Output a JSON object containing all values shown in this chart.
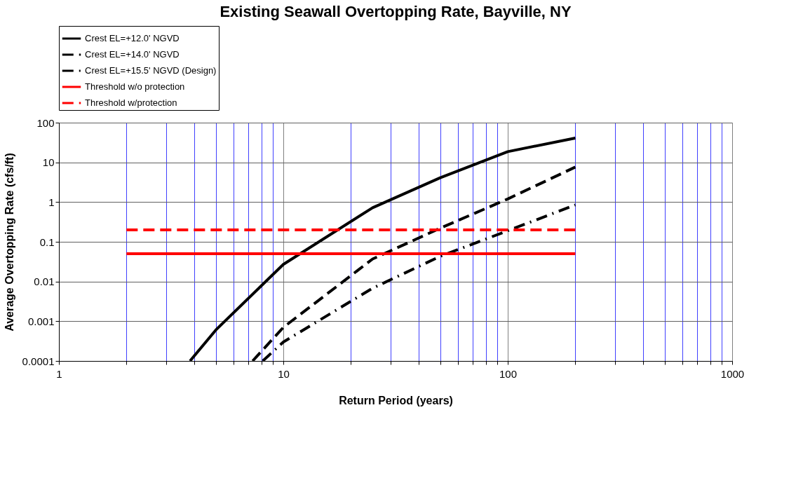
{
  "chart_data": {
    "type": "line",
    "title": "Existing Seawall Overtopping Rate, Bayville, NY",
    "xlabel": "Return Period (years)",
    "ylabel": "Average Overtopping Rate (cfs/ft)",
    "log": "xy",
    "grid": true,
    "legend": "top",
    "xlim": [
      1,
      1000
    ],
    "ylim": [
      0.0001,
      100
    ],
    "xticks": [
      1,
      {
        "value": 2,
        "label": null
      },
      {
        "value": 3,
        "label": null
      },
      {
        "value": 4,
        "label": null
      },
      {
        "value": 5,
        "label": null
      },
      {
        "value": 6,
        "label": null
      },
      {
        "value": 7,
        "label": null
      },
      {
        "value": 8,
        "label": null
      },
      {
        "value": 9,
        "label": null
      },
      10,
      {
        "value": 20,
        "label": null
      },
      {
        "value": 30,
        "label": null
      },
      {
        "value": 40,
        "label": null
      },
      {
        "value": 50,
        "label": null
      },
      {
        "value": 60,
        "label": null
      },
      {
        "value": 70,
        "label": null
      },
      {
        "value": 80,
        "label": null
      },
      {
        "value": 90,
        "label": null
      },
      100,
      {
        "value": 200,
        "label": null
      },
      {
        "value": 300,
        "label": null
      },
      {
        "value": 400,
        "label": null
      },
      {
        "value": 500,
        "label": null
      },
      {
        "value": 600,
        "label": null
      },
      {
        "value": 700,
        "label": null
      },
      {
        "value": 800,
        "label": null
      },
      {
        "value": 900,
        "label": null
      },
      1000
    ],
    "yticks": [
      0.0001,
      0.001,
      0.01,
      0.1,
      1,
      10,
      100
    ],
    "series": [
      {
        "name": "Crest EL=+12.0' NGVD",
        "color": "#000000",
        "line_style": "solid",
        "x": [
          3.84,
          5,
          10,
          25,
          50,
          100,
          200
        ],
        "values": [
          0.0001,
          0.0006,
          0.027,
          0.72,
          4.1,
          18.6,
          41
        ]
      },
      {
        "name": "Crest EL=+14.0' NGVD",
        "color": "#000000",
        "line_style": "dashed",
        "x": [
          7.3,
          10,
          25,
          50,
          100,
          200
        ],
        "values": [
          0.0001,
          0.0007,
          0.037,
          0.22,
          1.2,
          7.6
        ]
      },
      {
        "name": "Crest EL=+15.5' NGVD (Design)",
        "color": "#000000",
        "line_style": "dashdot",
        "x": [
          8.1,
          10,
          25,
          50,
          100,
          200
        ],
        "values": [
          0.0001,
          0.0003,
          0.0068,
          0.043,
          0.19,
          0.85
        ]
      },
      {
        "name": "Threshold w/o protection",
        "color": "#ff0000",
        "line_style": "solid",
        "x": [
          2,
          200
        ],
        "values": [
          0.05,
          0.05
        ]
      },
      {
        "name": "Threshold w/protection",
        "color": "#ff0000",
        "line_style": "dashed",
        "x": [
          2,
          200
        ],
        "values": [
          0.2,
          0.2
        ]
      }
    ]
  }
}
